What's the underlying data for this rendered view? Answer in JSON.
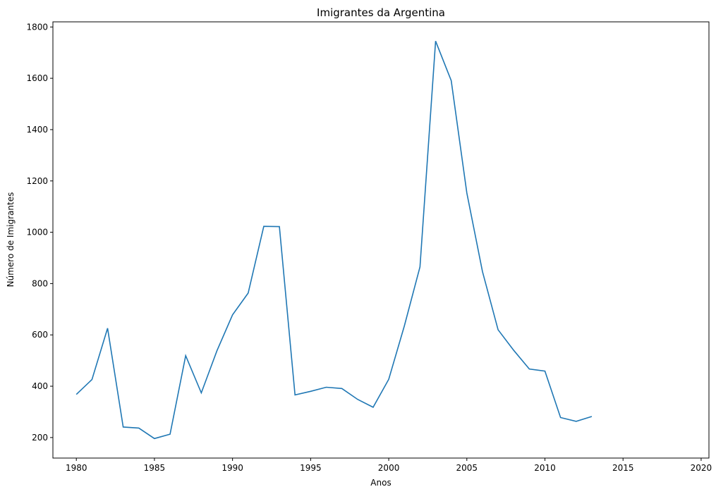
{
  "chart_data": {
    "type": "line",
    "title": "Imigrantes da Argentina",
    "xlabel": "Anos",
    "ylabel": "Número de Imigrantes",
    "xlim": [
      1978.5,
      2020.5
    ],
    "ylim": [
      120,
      1820
    ],
    "xticks": [
      1980,
      1985,
      1990,
      1995,
      2000,
      2005,
      2010,
      2015,
      2020
    ],
    "yticks": [
      200,
      400,
      600,
      800,
      1000,
      1200,
      1400,
      1600,
      1800
    ],
    "grid": false,
    "line_color": "#1f77b4",
    "series": [
      {
        "x": [
          1980,
          1981,
          1982,
          1983,
          1984,
          1985,
          1986,
          1987,
          1988,
          1989,
          1990,
          1991,
          1992,
          1993,
          1994,
          1995,
          1996,
          1997,
          1998,
          1999,
          2000,
          2001,
          2002,
          2003,
          2004,
          2005,
          2006,
          2007,
          2008,
          2009,
          2010,
          2011,
          2012,
          2013
        ],
        "values": [
          368,
          426,
          626,
          241,
          237,
          196,
          213,
          519,
          374,
          538,
          678,
          763,
          1023,
          1022,
          366,
          380,
          396,
          391,
          349,
          318,
          427,
          635,
          865,
          1745,
          1591,
          1153,
          847,
          620,
          540,
          467,
          459,
          278,
          263,
          282
        ]
      }
    ]
  }
}
